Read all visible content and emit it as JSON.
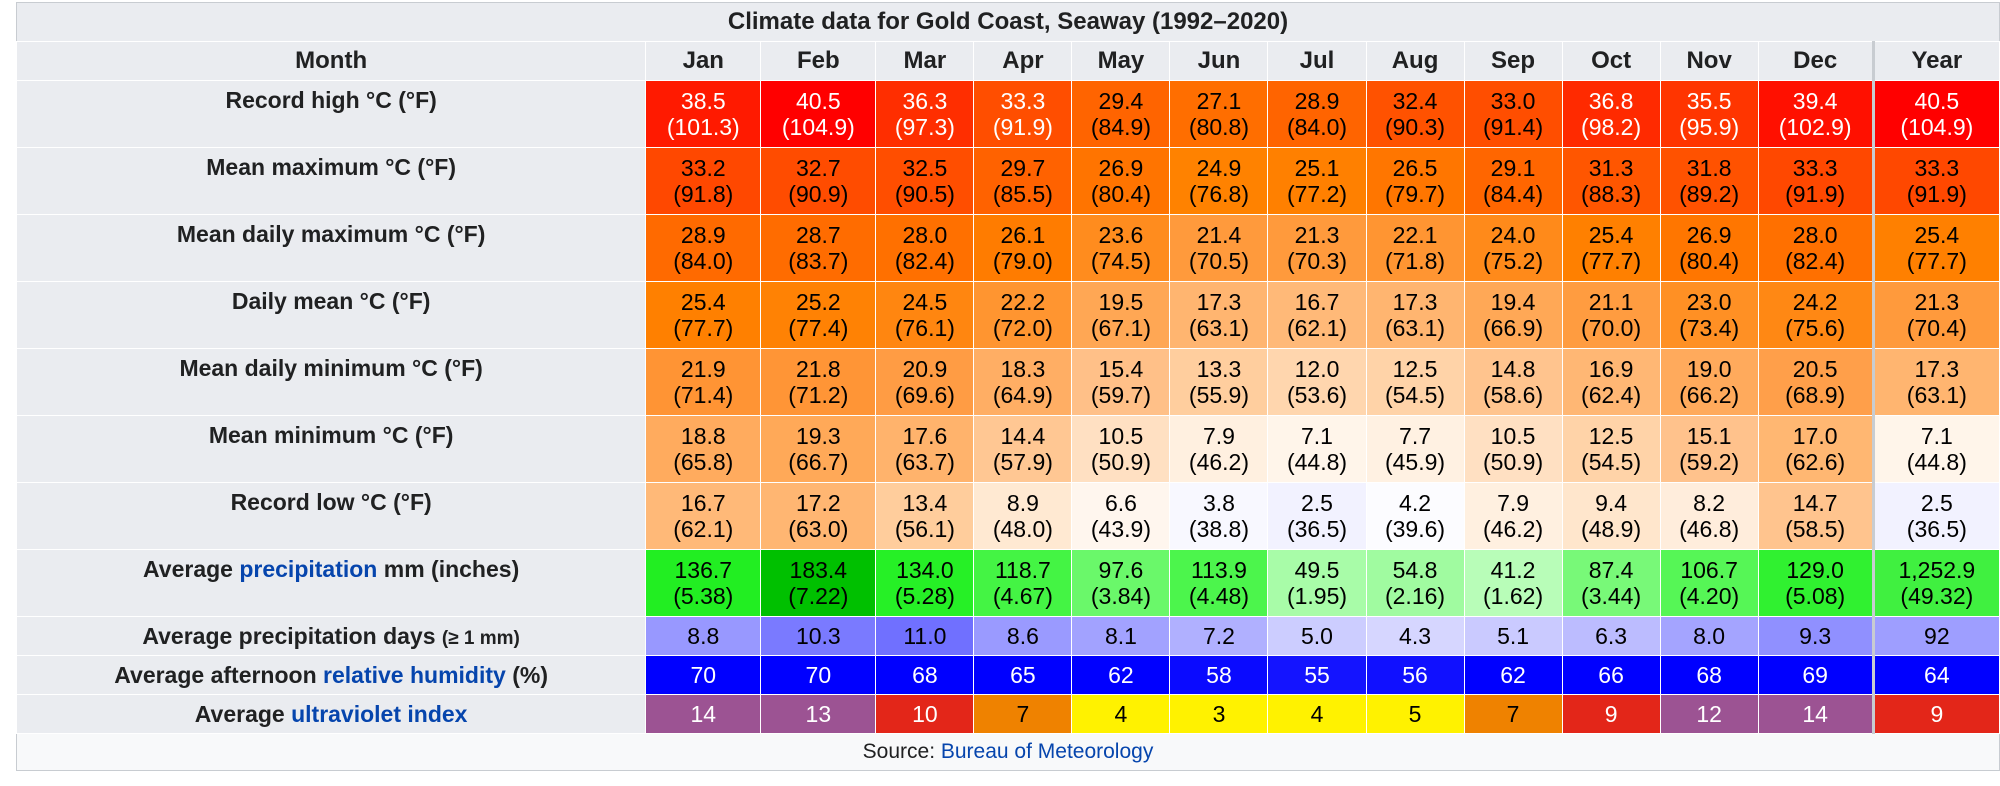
{
  "caption": "Climate data for Gold Coast, Seaway (1992–2020)",
  "header": {
    "label": "Month",
    "months": [
      "Jan",
      "Feb",
      "Mar",
      "Apr",
      "May",
      "Jun",
      "Jul",
      "Aug",
      "Sep",
      "Oct",
      "Nov",
      "Dec"
    ],
    "year": "Year"
  },
  "rows": [
    {
      "label": [
        {
          "text": "Record high °C (°F)"
        }
      ],
      "cells": [
        {
          "c": "38.5",
          "f": "(101.3)",
          "bg": "#ff1a00",
          "fg": "#ffffff"
        },
        {
          "c": "40.5",
          "f": "(104.9)",
          "bg": "#ff0000",
          "fg": "#ffffff"
        },
        {
          "c": "36.3",
          "f": "(97.3)",
          "bg": "#ff2e00",
          "fg": "#ffffff"
        },
        {
          "c": "33.3",
          "f": "(91.9)",
          "bg": "#ff4e00",
          "fg": "#ffffff"
        },
        {
          "c": "29.4",
          "f": "(84.9)",
          "bg": "#ff6400",
          "fg": "#000000"
        },
        {
          "c": "27.1",
          "f": "(80.8)",
          "bg": "#ff6e00",
          "fg": "#000000"
        },
        {
          "c": "28.9",
          "f": "(84.0)",
          "bg": "#ff6400",
          "fg": "#000000"
        },
        {
          "c": "32.4",
          "f": "(90.3)",
          "bg": "#ff5200",
          "fg": "#000000"
        },
        {
          "c": "33.0",
          "f": "(91.4)",
          "bg": "#ff4e00",
          "fg": "#000000"
        },
        {
          "c": "36.8",
          "f": "(98.2)",
          "bg": "#ff2a00",
          "fg": "#ffffff"
        },
        {
          "c": "35.5",
          "f": "(95.9)",
          "bg": "#ff3500",
          "fg": "#ffffff"
        },
        {
          "c": "39.4",
          "f": "(102.9)",
          "bg": "#ff1000",
          "fg": "#ffffff"
        },
        {
          "c": "40.5",
          "f": "(104.9)",
          "bg": "#ff0000",
          "fg": "#ffffff"
        }
      ]
    },
    {
      "label": [
        {
          "text": "Mean maximum °C (°F)"
        }
      ],
      "cells": [
        {
          "c": "33.2",
          "f": "(91.8)",
          "bg": "#ff4800",
          "fg": "#000000"
        },
        {
          "c": "32.7",
          "f": "(90.9)",
          "bg": "#ff4c00",
          "fg": "#000000"
        },
        {
          "c": "32.5",
          "f": "(90.5)",
          "bg": "#ff4e00",
          "fg": "#000000"
        },
        {
          "c": "29.7",
          "f": "(85.5)",
          "bg": "#ff6200",
          "fg": "#000000"
        },
        {
          "c": "26.9",
          "f": "(80.4)",
          "bg": "#ff7400",
          "fg": "#000000"
        },
        {
          "c": "24.9",
          "f": "(76.8)",
          "bg": "#ff8200",
          "fg": "#000000"
        },
        {
          "c": "25.1",
          "f": "(77.2)",
          "bg": "#ff8000",
          "fg": "#000000"
        },
        {
          "c": "26.5",
          "f": "(79.7)",
          "bg": "#ff7600",
          "fg": "#000000"
        },
        {
          "c": "29.1",
          "f": "(84.4)",
          "bg": "#ff6600",
          "fg": "#000000"
        },
        {
          "c": "31.3",
          "f": "(88.3)",
          "bg": "#ff5600",
          "fg": "#000000"
        },
        {
          "c": "31.8",
          "f": "(89.2)",
          "bg": "#ff5200",
          "fg": "#000000"
        },
        {
          "c": "33.3",
          "f": "(91.9)",
          "bg": "#ff4800",
          "fg": "#000000"
        },
        {
          "c": "33.3",
          "f": "(91.9)",
          "bg": "#ff4800",
          "fg": "#000000"
        }
      ]
    },
    {
      "label": [
        {
          "text": "Mean daily maximum °C (°F)"
        }
      ],
      "cells": [
        {
          "c": "28.9",
          "f": "(84.0)",
          "bg": "#ff6a00",
          "fg": "#000000"
        },
        {
          "c": "28.7",
          "f": "(83.7)",
          "bg": "#ff6c00",
          "fg": "#000000"
        },
        {
          "c": "28.0",
          "f": "(82.4)",
          "bg": "#ff7000",
          "fg": "#000000"
        },
        {
          "c": "26.1",
          "f": "(79.0)",
          "bg": "#ff7c00",
          "fg": "#000000"
        },
        {
          "c": "23.6",
          "f": "(74.5)",
          "bg": "#ff8c1e",
          "fg": "#000000"
        },
        {
          "c": "21.4",
          "f": "(70.5)",
          "bg": "#ff9a3c",
          "fg": "#000000"
        },
        {
          "c": "21.3",
          "f": "(70.3)",
          "bg": "#ff9a3c",
          "fg": "#000000"
        },
        {
          "c": "22.1",
          "f": "(71.8)",
          "bg": "#ff9532",
          "fg": "#000000"
        },
        {
          "c": "24.0",
          "f": "(75.2)",
          "bg": "#ff8a1a",
          "fg": "#000000"
        },
        {
          "c": "25.4",
          "f": "(77.7)",
          "bg": "#ff8000",
          "fg": "#000000"
        },
        {
          "c": "26.9",
          "f": "(80.4)",
          "bg": "#ff7600",
          "fg": "#000000"
        },
        {
          "c": "28.0",
          "f": "(82.4)",
          "bg": "#ff7000",
          "fg": "#000000"
        },
        {
          "c": "25.4",
          "f": "(77.7)",
          "bg": "#ff8000",
          "fg": "#000000"
        }
      ]
    },
    {
      "label": [
        {
          "text": "Daily mean °C (°F)"
        }
      ],
      "cells": [
        {
          "c": "25.4",
          "f": "(77.7)",
          "bg": "#ff8000",
          "fg": "#000000"
        },
        {
          "c": "25.2",
          "f": "(77.4)",
          "bg": "#ff8204",
          "fg": "#000000"
        },
        {
          "c": "24.5",
          "f": "(76.1)",
          "bg": "#ff8610",
          "fg": "#000000"
        },
        {
          "c": "22.2",
          "f": "(72.0)",
          "bg": "#ff9530",
          "fg": "#000000"
        },
        {
          "c": "19.5",
          "f": "(67.1)",
          "bg": "#ffa754",
          "fg": "#000000"
        },
        {
          "c": "17.3",
          "f": "(63.1)",
          "bg": "#ffb570",
          "fg": "#000000"
        },
        {
          "c": "16.7",
          "f": "(62.1)",
          "bg": "#ffb978",
          "fg": "#000000"
        },
        {
          "c": "17.3",
          "f": "(63.1)",
          "bg": "#ffb570",
          "fg": "#000000"
        },
        {
          "c": "19.4",
          "f": "(66.9)",
          "bg": "#ffa856",
          "fg": "#000000"
        },
        {
          "c": "21.1",
          "f": "(70.0)",
          "bg": "#ff9c40",
          "fg": "#000000"
        },
        {
          "c": "23.0",
          "f": "(73.4)",
          "bg": "#ff9024",
          "fg": "#000000"
        },
        {
          "c": "24.2",
          "f": "(75.6)",
          "bg": "#ff8814",
          "fg": "#000000"
        },
        {
          "c": "21.3",
          "f": "(70.4)",
          "bg": "#ff9a3c",
          "fg": "#000000"
        }
      ]
    },
    {
      "label": [
        {
          "text": "Mean daily minimum °C (°F)"
        }
      ],
      "cells": [
        {
          "c": "21.9",
          "f": "(71.4)",
          "bg": "#ff9434",
          "fg": "#000000"
        },
        {
          "c": "21.8",
          "f": "(71.2)",
          "bg": "#ff9536",
          "fg": "#000000"
        },
        {
          "c": "20.9",
          "f": "(69.6)",
          "bg": "#ff9c44",
          "fg": "#000000"
        },
        {
          "c": "18.3",
          "f": "(64.9)",
          "bg": "#ffae64",
          "fg": "#000000"
        },
        {
          "c": "15.4",
          "f": "(59.7)",
          "bg": "#ffc088",
          "fg": "#000000"
        },
        {
          "c": "13.3",
          "f": "(55.9)",
          "bg": "#ffce9e",
          "fg": "#000000"
        },
        {
          "c": "12.0",
          "f": "(53.6)",
          "bg": "#ffd6ae",
          "fg": "#000000"
        },
        {
          "c": "12.5",
          "f": "(54.5)",
          "bg": "#ffd3a8",
          "fg": "#000000"
        },
        {
          "c": "14.8",
          "f": "(58.6)",
          "bg": "#ffc48e",
          "fg": "#000000"
        },
        {
          "c": "16.9",
          "f": "(62.4)",
          "bg": "#ffb774",
          "fg": "#000000"
        },
        {
          "c": "19.0",
          "f": "(66.2)",
          "bg": "#ffaa5c",
          "fg": "#000000"
        },
        {
          "c": "20.5",
          "f": "(68.9)",
          "bg": "#ff9f4a",
          "fg": "#000000"
        },
        {
          "c": "17.3",
          "f": "(63.1)",
          "bg": "#ffb570",
          "fg": "#000000"
        }
      ]
    },
    {
      "label": [
        {
          "text": "Mean minimum °C (°F)"
        }
      ],
      "cells": [
        {
          "c": "18.8",
          "f": "(65.8)",
          "bg": "#ffab5e",
          "fg": "#000000"
        },
        {
          "c": "19.3",
          "f": "(66.7)",
          "bg": "#ffa958",
          "fg": "#000000"
        },
        {
          "c": "17.6",
          "f": "(63.7)",
          "bg": "#ffb36c",
          "fg": "#000000"
        },
        {
          "c": "14.4",
          "f": "(57.9)",
          "bg": "#ffc793",
          "fg": "#000000"
        },
        {
          "c": "10.5",
          "f": "(50.9)",
          "bg": "#ffe0c2",
          "fg": "#000000"
        },
        {
          "c": "7.9",
          "f": "(46.2)",
          "bg": "#fff0e0",
          "fg": "#000000"
        },
        {
          "c": "7.1",
          "f": "(44.8)",
          "bg": "#fff5ea",
          "fg": "#000000"
        },
        {
          "c": "7.7",
          "f": "(45.9)",
          "bg": "#fff1e2",
          "fg": "#000000"
        },
        {
          "c": "10.5",
          "f": "(50.9)",
          "bg": "#ffe0c2",
          "fg": "#000000"
        },
        {
          "c": "12.5",
          "f": "(54.5)",
          "bg": "#ffd3a8",
          "fg": "#000000"
        },
        {
          "c": "15.1",
          "f": "(59.2)",
          "bg": "#ffc28c",
          "fg": "#000000"
        },
        {
          "c": "17.0",
          "f": "(62.6)",
          "bg": "#ffb772",
          "fg": "#000000"
        },
        {
          "c": "7.1",
          "f": "(44.8)",
          "bg": "#fff5ea",
          "fg": "#000000"
        }
      ]
    },
    {
      "label": [
        {
          "text": "Record low °C (°F)"
        }
      ],
      "cells": [
        {
          "c": "16.7",
          "f": "(62.1)",
          "bg": "#ffb978",
          "fg": "#000000"
        },
        {
          "c": "17.2",
          "f": "(63.0)",
          "bg": "#ffb672",
          "fg": "#000000"
        },
        {
          "c": "13.4",
          "f": "(56.1)",
          "bg": "#ffcd9c",
          "fg": "#000000"
        },
        {
          "c": "8.9",
          "f": "(48.0)",
          "bg": "#ffe9d2",
          "fg": "#000000"
        },
        {
          "c": "6.6",
          "f": "(43.9)",
          "bg": "#fff6ee",
          "fg": "#000000"
        },
        {
          "c": "3.8",
          "f": "(38.8)",
          "bg": "#f8f8ff",
          "fg": "#000000"
        },
        {
          "c": "2.5",
          "f": "(36.5)",
          "bg": "#f2f2ff",
          "fg": "#000000"
        },
        {
          "c": "4.2",
          "f": "(39.6)",
          "bg": "#fcfcff",
          "fg": "#000000"
        },
        {
          "c": "7.9",
          "f": "(46.2)",
          "bg": "#fff0e0",
          "fg": "#000000"
        },
        {
          "c": "9.4",
          "f": "(48.9)",
          "bg": "#ffe6cc",
          "fg": "#000000"
        },
        {
          "c": "8.2",
          "f": "(46.8)",
          "bg": "#ffeddc",
          "fg": "#000000"
        },
        {
          "c": "14.7",
          "f": "(58.5)",
          "bg": "#ffc48e",
          "fg": "#000000"
        },
        {
          "c": "2.5",
          "f": "(36.5)",
          "bg": "#f2f2ff",
          "fg": "#000000"
        }
      ]
    },
    {
      "label": [
        {
          "text": "Average "
        },
        {
          "text": "precipitation",
          "link": true
        },
        {
          "text": " mm (inches)"
        }
      ],
      "cells": [
        {
          "c": "136.7",
          "f": "(5.38)",
          "bg": "#22ee22",
          "fg": "#000000"
        },
        {
          "c": "183.4",
          "f": "(7.22)",
          "bg": "#00c000",
          "fg": "#000000"
        },
        {
          "c": "134.0",
          "f": "(5.28)",
          "bg": "#26f026",
          "fg": "#000000"
        },
        {
          "c": "118.7",
          "f": "(4.67)",
          "bg": "#44f444",
          "fg": "#000000"
        },
        {
          "c": "97.6",
          "f": "(3.84)",
          "bg": "#6af86a",
          "fg": "#000000"
        },
        {
          "c": "113.9",
          "f": "(4.48)",
          "bg": "#4cf54c",
          "fg": "#000000"
        },
        {
          "c": "49.5",
          "f": "(1.95)",
          "bg": "#a8fca8",
          "fg": "#000000"
        },
        {
          "c": "54.8",
          "f": "(2.16)",
          "bg": "#a0fba0",
          "fg": "#000000"
        },
        {
          "c": "41.2",
          "f": "(1.62)",
          "bg": "#b8fdb8",
          "fg": "#000000"
        },
        {
          "c": "87.4",
          "f": "(3.44)",
          "bg": "#78f978",
          "fg": "#000000"
        },
        {
          "c": "106.7",
          "f": "(4.20)",
          "bg": "#56f656",
          "fg": "#000000"
        },
        {
          "c": "129.0",
          "f": "(5.08)",
          "bg": "#30f130",
          "fg": "#000000"
        },
        {
          "c": "1,252.9",
          "f": "(49.32)",
          "bg": "#40f040",
          "fg": "#000000"
        }
      ]
    },
    {
      "label": [
        {
          "text": "Average precipitation days "
        },
        {
          "text": "(≥ 1 mm)",
          "small": true
        }
      ],
      "single": true,
      "cells": [
        {
          "c": "8.8",
          "bg": "#9898ff",
          "fg": "#000000"
        },
        {
          "c": "10.3",
          "bg": "#7a7aff",
          "fg": "#000000"
        },
        {
          "c": "11.0",
          "bg": "#7070ff",
          "fg": "#000000"
        },
        {
          "c": "8.6",
          "bg": "#9a9aff",
          "fg": "#000000"
        },
        {
          "c": "8.1",
          "bg": "#a2a2ff",
          "fg": "#000000"
        },
        {
          "c": "7.2",
          "bg": "#b0b0ff",
          "fg": "#000000"
        },
        {
          "c": "5.0",
          "bg": "#cccdff",
          "fg": "#000000"
        },
        {
          "c": "4.3",
          "bg": "#d6d6ff",
          "fg": "#000000"
        },
        {
          "c": "5.1",
          "bg": "#cacaff",
          "fg": "#000000"
        },
        {
          "c": "6.3",
          "bg": "#bcbcff",
          "fg": "#000000"
        },
        {
          "c": "8.0",
          "bg": "#a4a4ff",
          "fg": "#000000"
        },
        {
          "c": "9.3",
          "bg": "#9090ff",
          "fg": "#000000"
        },
        {
          "c": "92",
          "bg": "#9e9eff",
          "fg": "#000000"
        }
      ]
    },
    {
      "label": [
        {
          "text": "Average afternoon "
        },
        {
          "text": "relative humidity",
          "link": true
        },
        {
          "text": " (%)"
        }
      ],
      "single": true,
      "cells": [
        {
          "c": "70",
          "bg": "#0000ff",
          "fg": "#ffffff"
        },
        {
          "c": "70",
          "bg": "#0000ff",
          "fg": "#ffffff"
        },
        {
          "c": "68",
          "bg": "#0000ff",
          "fg": "#ffffff"
        },
        {
          "c": "65",
          "bg": "#0000ff",
          "fg": "#ffffff"
        },
        {
          "c": "62",
          "bg": "#0000ff",
          "fg": "#ffffff"
        },
        {
          "c": "58",
          "bg": "#0a0aff",
          "fg": "#ffffff"
        },
        {
          "c": "55",
          "bg": "#1414ff",
          "fg": "#ffffff"
        },
        {
          "c": "56",
          "bg": "#1010ff",
          "fg": "#ffffff"
        },
        {
          "c": "62",
          "bg": "#0000ff",
          "fg": "#ffffff"
        },
        {
          "c": "66",
          "bg": "#0000ff",
          "fg": "#ffffff"
        },
        {
          "c": "68",
          "bg": "#0000ff",
          "fg": "#ffffff"
        },
        {
          "c": "69",
          "bg": "#0000ff",
          "fg": "#ffffff"
        },
        {
          "c": "64",
          "bg": "#0000ff",
          "fg": "#ffffff"
        }
      ]
    },
    {
      "label": [
        {
          "text": "Average "
        },
        {
          "text": "ultraviolet index",
          "link": true
        }
      ],
      "single": true,
      "cells": [
        {
          "c": "14",
          "bg": "#9c5393",
          "fg": "#ffffff"
        },
        {
          "c": "13",
          "bg": "#9c5393",
          "fg": "#ffffff"
        },
        {
          "c": "10",
          "bg": "#e32619",
          "fg": "#ffffff"
        },
        {
          "c": "7",
          "bg": "#ef8200",
          "fg": "#000000"
        },
        {
          "c": "4",
          "bg": "#fff200",
          "fg": "#000000"
        },
        {
          "c": "3",
          "bg": "#fff200",
          "fg": "#000000"
        },
        {
          "c": "4",
          "bg": "#fff200",
          "fg": "#000000"
        },
        {
          "c": "5",
          "bg": "#fff200",
          "fg": "#000000"
        },
        {
          "c": "7",
          "bg": "#ef8200",
          "fg": "#000000"
        },
        {
          "c": "9",
          "bg": "#e32619",
          "fg": "#ffffff"
        },
        {
          "c": "12",
          "bg": "#9c5393",
          "fg": "#ffffff"
        },
        {
          "c": "14",
          "bg": "#9c5393",
          "fg": "#ffffff"
        },
        {
          "c": "9",
          "bg": "#e32619",
          "fg": "#ffffff"
        }
      ]
    }
  ],
  "source": {
    "prefix": "Source: ",
    "link": "Bureau of Meteorology"
  }
}
